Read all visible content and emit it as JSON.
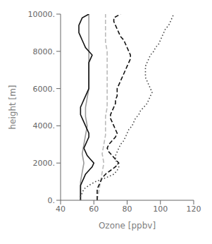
{
  "chart_data": {
    "type": "line",
    "xlabel": "Ozone [ppbv]",
    "ylabel": "height [m]",
    "xlim": [
      40,
      120
    ],
    "ylim": [
      0,
      10000
    ],
    "xticks": [
      40,
      60,
      80,
      100,
      120
    ],
    "yticks": [
      {
        "value": 0,
        "label": "0."
      },
      {
        "value": 2000,
        "label": "2000."
      },
      {
        "value": 4000,
        "label": "4000."
      },
      {
        "value": 6000,
        "label": "6000."
      },
      {
        "value": 8000,
        "label": "8000."
      },
      {
        "value": 10000,
        "label": "10000."
      }
    ],
    "grid": false,
    "series": [
      {
        "color": "#999999",
        "line_style": "solid",
        "x": [
          52,
          52,
          52,
          53,
          54,
          53,
          54,
          55,
          56,
          55,
          55,
          56,
          57,
          57,
          57,
          57,
          57,
          57,
          57,
          57,
          57
        ],
        "values": [
          0,
          500,
          1000,
          1500,
          2000,
          2500,
          3000,
          3500,
          4000,
          4500,
          5000,
          5500,
          6000,
          6500,
          7000,
          7500,
          8000,
          8500,
          9000,
          9500,
          10000
        ]
      },
      {
        "color": "#111111",
        "line_style": "solid",
        "x": [
          52,
          52,
          52,
          52,
          52,
          53,
          54,
          55,
          57,
          59,
          60,
          58,
          56,
          55,
          54,
          55,
          56,
          57,
          57,
          56,
          55,
          54,
          53,
          52,
          52,
          52,
          53,
          54,
          55,
          56,
          57,
          57,
          57,
          57,
          57,
          57,
          57,
          57,
          58,
          59,
          57,
          55,
          54,
          53,
          52,
          51,
          51,
          51,
          52,
          53,
          57
        ],
        "values": [
          0,
          200,
          400,
          600,
          800,
          1000,
          1200,
          1400,
          1600,
          1800,
          2000,
          2200,
          2400,
          2600,
          2800,
          3000,
          3200,
          3400,
          3600,
          3800,
          4000,
          4200,
          4400,
          4600,
          4800,
          5000,
          5200,
          5400,
          5600,
          5800,
          6000,
          6200,
          6400,
          6600,
          6800,
          7000,
          7200,
          7400,
          7600,
          7800,
          8000,
          8200,
          8400,
          8600,
          8800,
          9000,
          9200,
          9400,
          9600,
          9800,
          10000
        ]
      },
      {
        "color": "#bbbbbb",
        "line_style": "dashed",
        "x": [
          62,
          63,
          64,
          65,
          66,
          65,
          66,
          67,
          67,
          67,
          68,
          68,
          68,
          68,
          68,
          68,
          68,
          67,
          67,
          67,
          67
        ],
        "values": [
          0,
          500,
          1000,
          1500,
          2000,
          2500,
          3000,
          3500,
          4000,
          4500,
          5000,
          5500,
          6000,
          6500,
          7000,
          7500,
          8000,
          8500,
          9000,
          9500,
          10000
        ]
      },
      {
        "color": "#111111",
        "line_style": "dashed",
        "x": [
          62,
          62,
          62,
          62,
          63,
          64,
          65,
          67,
          70,
          73,
          75,
          73,
          71,
          69,
          68,
          69,
          71,
          73,
          74,
          73,
          72,
          71,
          70,
          70,
          71,
          72,
          73,
          73,
          74,
          74,
          74,
          75,
          76,
          77,
          78,
          79,
          80,
          81,
          82,
          82,
          81,
          80,
          79,
          78,
          76,
          75,
          74,
          73,
          72,
          72,
          76
        ],
        "values": [
          0,
          200,
          400,
          600,
          800,
          1000,
          1200,
          1400,
          1600,
          1800,
          2000,
          2200,
          2400,
          2600,
          2800,
          3000,
          3200,
          3400,
          3600,
          3800,
          4000,
          4200,
          4400,
          4600,
          4800,
          5000,
          5200,
          5400,
          5600,
          5800,
          6000,
          6200,
          6400,
          6600,
          6800,
          7000,
          7200,
          7400,
          7600,
          7800,
          8000,
          8200,
          8400,
          8600,
          8800,
          9000,
          9200,
          9400,
          9600,
          9800,
          10000
        ]
      },
      {
        "color": "#444444",
        "line_style": "dotted",
        "x": [
          52,
          52,
          53,
          54,
          57,
          61,
          67,
          72,
          74,
          75,
          74,
          73,
          73,
          74,
          75,
          76,
          78,
          79,
          80,
          81,
          83,
          84,
          85,
          87,
          88,
          90,
          92,
          93,
          94,
          95,
          94,
          93,
          92,
          91,
          91,
          91,
          91,
          92,
          93,
          94,
          96,
          97,
          99,
          100,
          101,
          102,
          103,
          105,
          106,
          107,
          108
        ],
        "values": [
          0,
          200,
          400,
          600,
          800,
          1000,
          1200,
          1400,
          1600,
          1800,
          2000,
          2200,
          2400,
          2600,
          2800,
          3000,
          3200,
          3400,
          3600,
          3800,
          4000,
          4200,
          4400,
          4600,
          4800,
          5000,
          5200,
          5400,
          5600,
          5800,
          6000,
          6200,
          6400,
          6600,
          6800,
          7000,
          7200,
          7400,
          7600,
          7800,
          8000,
          8200,
          8400,
          8600,
          8800,
          9000,
          9200,
          9400,
          9600,
          9800,
          10000
        ]
      }
    ]
  }
}
